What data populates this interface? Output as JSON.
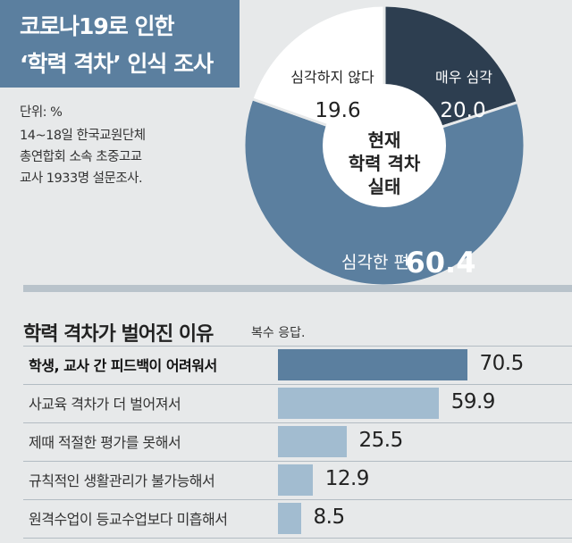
{
  "title": {
    "line1": "코로나19로 인한",
    "line2": "‘학력 격차’ 인식 조사"
  },
  "meta": {
    "unit": "단위: %",
    "source_lines": [
      "14~18일 한국교원단체",
      "총연합회 소속 초중고교",
      "교사 1933명 설문조사."
    ]
  },
  "pie_center": [
    "현재",
    "학력 격차",
    "실태"
  ],
  "colors": {
    "pie_severe": "#2d3e50",
    "pie_somewhat": "#5b7f9f",
    "pie_not": "#ffffff",
    "bar_top": "#5b7f9f",
    "bar_other": "#a2bcd0"
  },
  "chart_data": [
    {
      "type": "pie",
      "title": "현재 학력 격차 실태",
      "unit": "%",
      "slices": [
        {
          "label": "매우 심각",
          "value": 20.0,
          "value_text": "20.0"
        },
        {
          "label": "심각한 편",
          "value": 60.4,
          "value_text": "60.4"
        },
        {
          "label": "심각하지 않다",
          "value": 19.6,
          "value_text": "19.6"
        }
      ]
    },
    {
      "type": "bar",
      "orientation": "horizontal",
      "title": "학력 격차가 벌어진 이유",
      "note": "복수 응답.",
      "unit": "%",
      "xlim": [
        0,
        100
      ],
      "categories": [
        "학생, 교사 간 피드백이 어려워서",
        "사교육 격차가 더 벌어져서",
        "제때 적절한 평가를 못해서",
        "규칙적인 생활관리가 불가능해서",
        "원격수업이 등교수업보다 미흡해서"
      ],
      "values": [
        70.5,
        59.9,
        25.5,
        12.9,
        8.5
      ],
      "value_texts": [
        "70.5",
        "59.9",
        "25.5",
        "12.9",
        "8.5"
      ]
    }
  ]
}
